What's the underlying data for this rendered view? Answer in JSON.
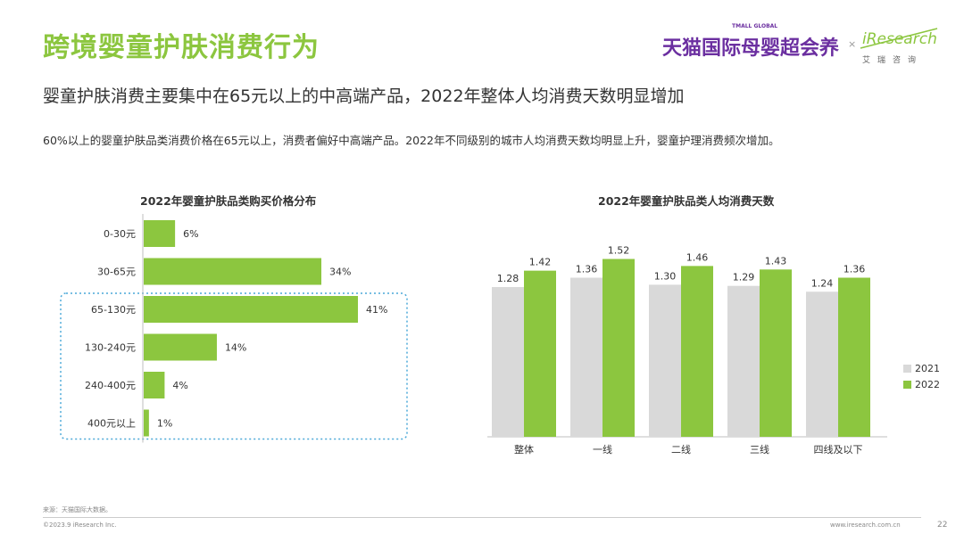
{
  "header": {
    "title": "跨境婴童护肤消费行为",
    "subtitle": "婴童护肤消费主要集中在65元以上的中高端产品，2022年整体人均消费天数明显增加",
    "description": "60%以上的婴童护肤品类消费价格在65元以上，消费者偏好中高端产品。2022年不同级别的城市人均消费天数均明显上升，婴童护理消费频次增加。"
  },
  "logos": {
    "tmall_small": "TMALL GLOBAL",
    "tmall": "天猫国际母婴超会养",
    "times": "×",
    "iresearch": "iResearch",
    "iresearch_cn": "艾瑞咨询"
  },
  "footer": {
    "source": "来源：天猫国际大数据。",
    "copyright": "©2023.9 iResearch Inc.",
    "url": "www.iresearch.com.cn",
    "page": "22"
  },
  "colors": {
    "accent": "#8cc63f",
    "grey": "#d9d9d9",
    "highlight_border": "#4aa8d8"
  },
  "chart_data": [
    {
      "type": "bar",
      "orientation": "horizontal",
      "title": "2022年婴童护肤品类购买价格分布",
      "categories": [
        "0-30元",
        "30-65元",
        "65-130元",
        "130-240元",
        "240-400元",
        "400元以上"
      ],
      "values": [
        6,
        34,
        41,
        14,
        4,
        1
      ],
      "value_labels": [
        "6%",
        "34%",
        "41%",
        "14%",
        "4%",
        "1%"
      ],
      "unit": "%",
      "highlighted_categories": [
        "65-130元",
        "130-240元",
        "240-400元",
        "400元以上"
      ]
    },
    {
      "type": "bar",
      "title": "2022年婴童护肤品类人均消费天数",
      "categories": [
        "整体",
        "一线",
        "二线",
        "三线",
        "四线及以下"
      ],
      "series": [
        {
          "name": "2021",
          "values": [
            1.28,
            1.36,
            1.3,
            1.29,
            1.24
          ],
          "labels": [
            "1.28",
            "1.36",
            "1.30",
            "1.29",
            "1.24"
          ]
        },
        {
          "name": "2022",
          "values": [
            1.42,
            1.52,
            1.46,
            1.43,
            1.36
          ],
          "labels": [
            "1.42",
            "1.52",
            "1.46",
            "1.43",
            "1.36"
          ]
        }
      ],
      "legend_position": "right"
    }
  ]
}
